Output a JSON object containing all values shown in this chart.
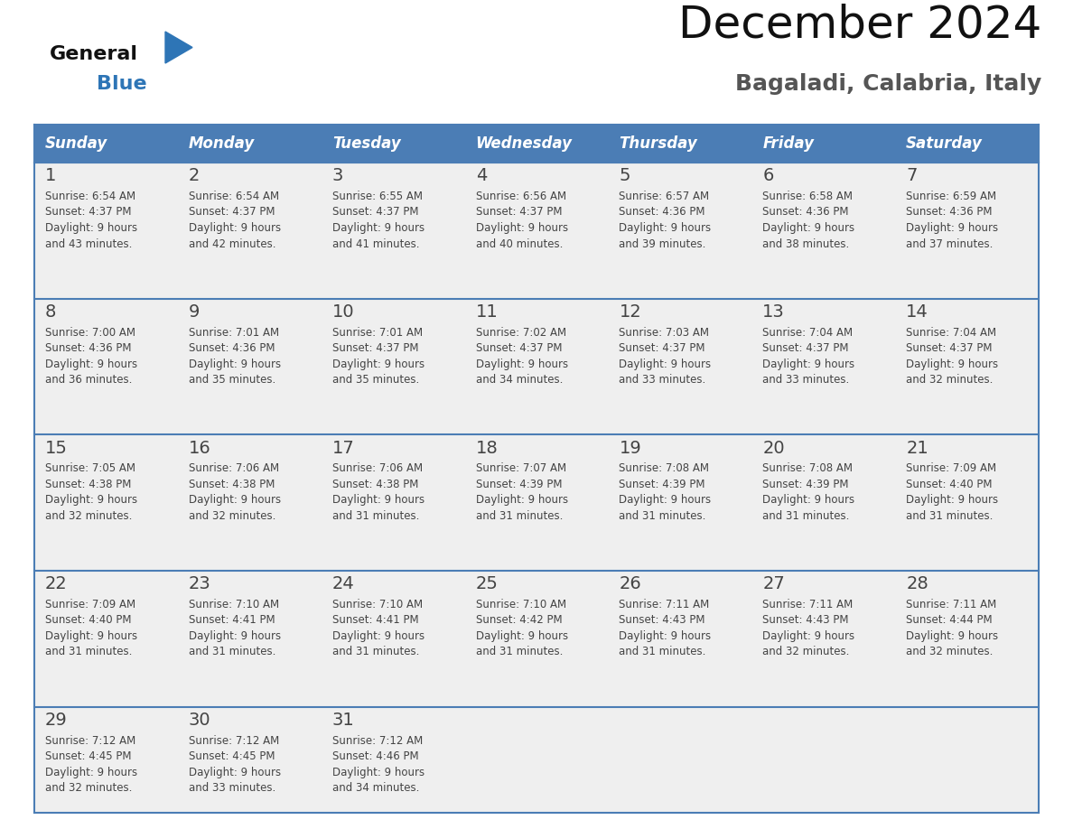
{
  "title": "December 2024",
  "subtitle": "Bagaladi, Calabria, Italy",
  "header_color": "#4B7DB5",
  "header_text_color": "#FFFFFF",
  "cell_bg_light": "#EFEFEF",
  "cell_bg_white": "#FFFFFF",
  "day_names": [
    "Sunday",
    "Monday",
    "Tuesday",
    "Wednesday",
    "Thursday",
    "Friday",
    "Saturday"
  ],
  "days": [
    {
      "day": 1,
      "col": 0,
      "row": 0,
      "sunrise": "6:54 AM",
      "sunset": "4:37 PM",
      "daylight": "9 hours",
      "daylight2": "and 43 minutes."
    },
    {
      "day": 2,
      "col": 1,
      "row": 0,
      "sunrise": "6:54 AM",
      "sunset": "4:37 PM",
      "daylight": "9 hours",
      "daylight2": "and 42 minutes."
    },
    {
      "day": 3,
      "col": 2,
      "row": 0,
      "sunrise": "6:55 AM",
      "sunset": "4:37 PM",
      "daylight": "9 hours",
      "daylight2": "and 41 minutes."
    },
    {
      "day": 4,
      "col": 3,
      "row": 0,
      "sunrise": "6:56 AM",
      "sunset": "4:37 PM",
      "daylight": "9 hours",
      "daylight2": "and 40 minutes."
    },
    {
      "day": 5,
      "col": 4,
      "row": 0,
      "sunrise": "6:57 AM",
      "sunset": "4:36 PM",
      "daylight": "9 hours",
      "daylight2": "and 39 minutes."
    },
    {
      "day": 6,
      "col": 5,
      "row": 0,
      "sunrise": "6:58 AM",
      "sunset": "4:36 PM",
      "daylight": "9 hours",
      "daylight2": "and 38 minutes."
    },
    {
      "day": 7,
      "col": 6,
      "row": 0,
      "sunrise": "6:59 AM",
      "sunset": "4:36 PM",
      "daylight": "9 hours",
      "daylight2": "and 37 minutes."
    },
    {
      "day": 8,
      "col": 0,
      "row": 1,
      "sunrise": "7:00 AM",
      "sunset": "4:36 PM",
      "daylight": "9 hours",
      "daylight2": "and 36 minutes."
    },
    {
      "day": 9,
      "col": 1,
      "row": 1,
      "sunrise": "7:01 AM",
      "sunset": "4:36 PM",
      "daylight": "9 hours",
      "daylight2": "and 35 minutes."
    },
    {
      "day": 10,
      "col": 2,
      "row": 1,
      "sunrise": "7:01 AM",
      "sunset": "4:37 PM",
      "daylight": "9 hours",
      "daylight2": "and 35 minutes."
    },
    {
      "day": 11,
      "col": 3,
      "row": 1,
      "sunrise": "7:02 AM",
      "sunset": "4:37 PM",
      "daylight": "9 hours",
      "daylight2": "and 34 minutes."
    },
    {
      "day": 12,
      "col": 4,
      "row": 1,
      "sunrise": "7:03 AM",
      "sunset": "4:37 PM",
      "daylight": "9 hours",
      "daylight2": "and 33 minutes."
    },
    {
      "day": 13,
      "col": 5,
      "row": 1,
      "sunrise": "7:04 AM",
      "sunset": "4:37 PM",
      "daylight": "9 hours",
      "daylight2": "and 33 minutes."
    },
    {
      "day": 14,
      "col": 6,
      "row": 1,
      "sunrise": "7:04 AM",
      "sunset": "4:37 PM",
      "daylight": "9 hours",
      "daylight2": "and 32 minutes."
    },
    {
      "day": 15,
      "col": 0,
      "row": 2,
      "sunrise": "7:05 AM",
      "sunset": "4:38 PM",
      "daylight": "9 hours",
      "daylight2": "and 32 minutes."
    },
    {
      "day": 16,
      "col": 1,
      "row": 2,
      "sunrise": "7:06 AM",
      "sunset": "4:38 PM",
      "daylight": "9 hours",
      "daylight2": "and 32 minutes."
    },
    {
      "day": 17,
      "col": 2,
      "row": 2,
      "sunrise": "7:06 AM",
      "sunset": "4:38 PM",
      "daylight": "9 hours",
      "daylight2": "and 31 minutes."
    },
    {
      "day": 18,
      "col": 3,
      "row": 2,
      "sunrise": "7:07 AM",
      "sunset": "4:39 PM",
      "daylight": "9 hours",
      "daylight2": "and 31 minutes."
    },
    {
      "day": 19,
      "col": 4,
      "row": 2,
      "sunrise": "7:08 AM",
      "sunset": "4:39 PM",
      "daylight": "9 hours",
      "daylight2": "and 31 minutes."
    },
    {
      "day": 20,
      "col": 5,
      "row": 2,
      "sunrise": "7:08 AM",
      "sunset": "4:39 PM",
      "daylight": "9 hours",
      "daylight2": "and 31 minutes."
    },
    {
      "day": 21,
      "col": 6,
      "row": 2,
      "sunrise": "7:09 AM",
      "sunset": "4:40 PM",
      "daylight": "9 hours",
      "daylight2": "and 31 minutes."
    },
    {
      "day": 22,
      "col": 0,
      "row": 3,
      "sunrise": "7:09 AM",
      "sunset": "4:40 PM",
      "daylight": "9 hours",
      "daylight2": "and 31 minutes."
    },
    {
      "day": 23,
      "col": 1,
      "row": 3,
      "sunrise": "7:10 AM",
      "sunset": "4:41 PM",
      "daylight": "9 hours",
      "daylight2": "and 31 minutes."
    },
    {
      "day": 24,
      "col": 2,
      "row": 3,
      "sunrise": "7:10 AM",
      "sunset": "4:41 PM",
      "daylight": "9 hours",
      "daylight2": "and 31 minutes."
    },
    {
      "day": 25,
      "col": 3,
      "row": 3,
      "sunrise": "7:10 AM",
      "sunset": "4:42 PM",
      "daylight": "9 hours",
      "daylight2": "and 31 minutes."
    },
    {
      "day": 26,
      "col": 4,
      "row": 3,
      "sunrise": "7:11 AM",
      "sunset": "4:43 PM",
      "daylight": "9 hours",
      "daylight2": "and 31 minutes."
    },
    {
      "day": 27,
      "col": 5,
      "row": 3,
      "sunrise": "7:11 AM",
      "sunset": "4:43 PM",
      "daylight": "9 hours",
      "daylight2": "and 32 minutes."
    },
    {
      "day": 28,
      "col": 6,
      "row": 3,
      "sunrise": "7:11 AM",
      "sunset": "4:44 PM",
      "daylight": "9 hours",
      "daylight2": "and 32 minutes."
    },
    {
      "day": 29,
      "col": 0,
      "row": 4,
      "sunrise": "7:12 AM",
      "sunset": "4:45 PM",
      "daylight": "9 hours",
      "daylight2": "and 32 minutes."
    },
    {
      "day": 30,
      "col": 1,
      "row": 4,
      "sunrise": "7:12 AM",
      "sunset": "4:45 PM",
      "daylight": "9 hours",
      "daylight2": "and 33 minutes."
    },
    {
      "day": 31,
      "col": 2,
      "row": 4,
      "sunrise": "7:12 AM",
      "sunset": "4:46 PM",
      "daylight": "9 hours",
      "daylight2": "and 34 minutes."
    }
  ],
  "num_rows": 5,
  "logo_text_general": "General",
  "logo_text_blue": "Blue",
  "logo_triangle_color": "#2E75B6",
  "text_color": "#444444",
  "border_color": "#4B7DB5",
  "cell_text_color": "#444444",
  "fig_width": 11.88,
  "fig_height": 9.18,
  "dpi": 100
}
